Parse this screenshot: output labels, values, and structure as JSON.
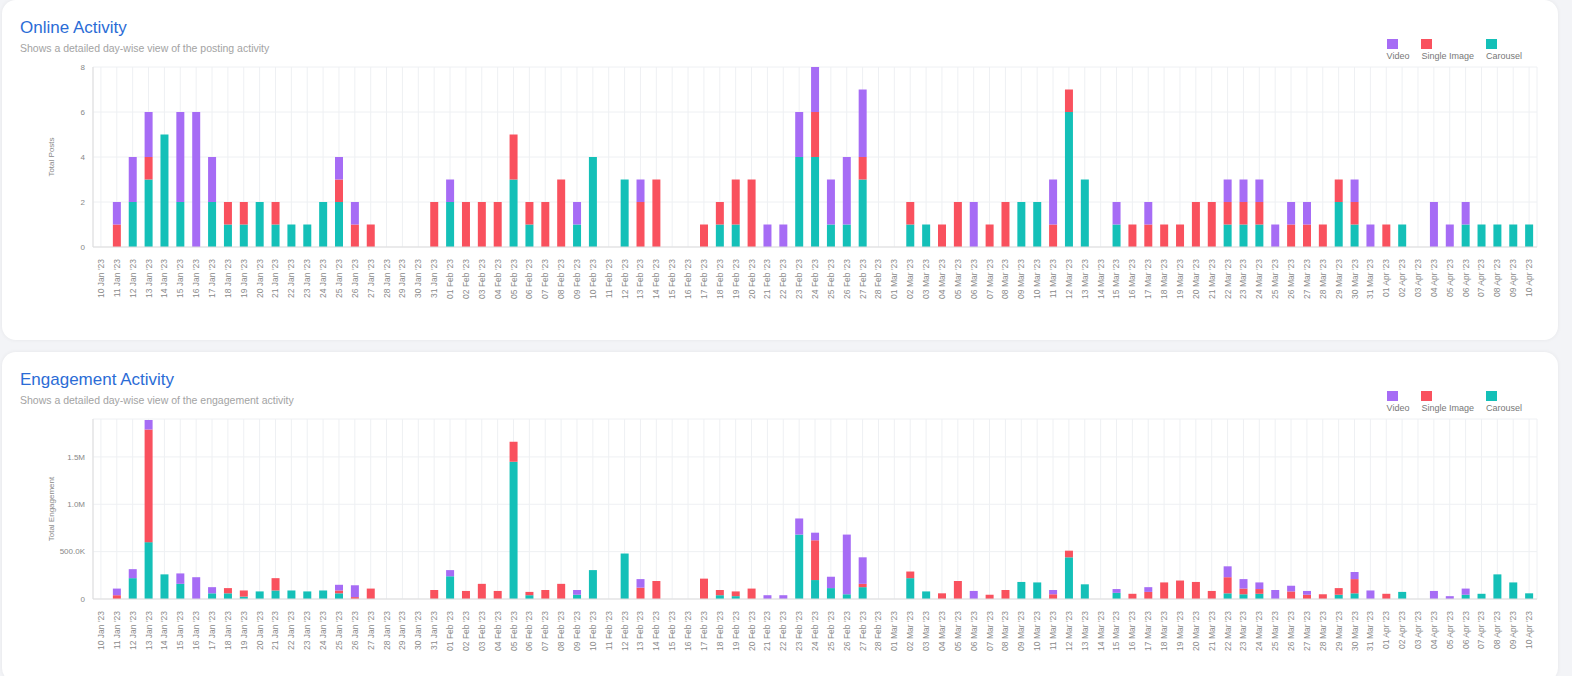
{
  "chart_data": [
    {
      "type": "bar",
      "title": "Online Activity",
      "subtitle": "Shows a detailed day-wise view of the posting activity",
      "y_label": "Total Posts",
      "categories": [
        "10 Jan '23",
        "11 Jan '23",
        "12 Jan '23",
        "13 Jan '23",
        "14 Jan '23",
        "15 Jan '23",
        "16 Jan '23",
        "17 Jan '23",
        "18 Jan '23",
        "19 Jan '23",
        "20 Jan '23",
        "21 Jan '23",
        "22 Jan '23",
        "23 Jan '23",
        "24 Jan '23",
        "25 Jan '23",
        "26 Jan '23",
        "27 Jan '23",
        "28 Jan '23",
        "29 Jan '23",
        "30 Jan '23",
        "31 Jan '23",
        "01 Feb '23",
        "02 Feb '23",
        "03 Feb '23",
        "04 Feb '23",
        "05 Feb '23",
        "06 Feb '23",
        "07 Feb '23",
        "08 Feb '23",
        "09 Feb '23",
        "10 Feb '23",
        "11 Feb '23",
        "12 Feb '23",
        "13 Feb '23",
        "14 Feb '23",
        "15 Feb '23",
        "16 Feb '23",
        "17 Feb '23",
        "18 Feb '23",
        "19 Feb '23",
        "20 Feb '23",
        "21 Feb '23",
        "22 Feb '23",
        "23 Feb '23",
        "24 Feb '23",
        "25 Feb '23",
        "26 Feb '23",
        "27 Feb '23",
        "28 Feb '23",
        "01 Mar '23",
        "02 Mar '23",
        "03 Mar '23",
        "04 Mar '23",
        "05 Mar '23",
        "06 Mar '23",
        "07 Mar '23",
        "08 Mar '23",
        "09 Mar '23",
        "10 Mar '23",
        "11 Mar '23",
        "12 Mar '23",
        "13 Mar '23",
        "14 Mar '23",
        "15 Mar '23",
        "16 Mar '23",
        "17 Mar '23",
        "18 Mar '23",
        "19 Mar '23",
        "20 Mar '23",
        "21 Mar '23",
        "22 Mar '23",
        "23 Mar '23",
        "24 Mar '23",
        "25 Mar '23",
        "26 Mar '23",
        "27 Mar '23",
        "28 Mar '23",
        "29 Mar '23",
        "30 Mar '23",
        "31 Mar '23",
        "01 Apr '23",
        "02 Apr '23",
        "03 Apr '23",
        "04 Apr '23",
        "05 Apr '23",
        "06 Apr '23",
        "07 Apr '23",
        "08 Apr '23",
        "09 Apr '23",
        "10 Apr '23"
      ],
      "series": [
        {
          "name": "Video",
          "color": "#a66cf5",
          "values": [
            0,
            1,
            2,
            2,
            0,
            4,
            6,
            2,
            0,
            0,
            0,
            0,
            0,
            0,
            0,
            1,
            1,
            0,
            0,
            0,
            0,
            0,
            1,
            0,
            0,
            0,
            0,
            0,
            0,
            0,
            1,
            0,
            0,
            0,
            1,
            0,
            0,
            0,
            0,
            0,
            0,
            0,
            1,
            1,
            2,
            2,
            2,
            3,
            3,
            0,
            0,
            0,
            0,
            0,
            0,
            2,
            0,
            0,
            0,
            0,
            2,
            0,
            0,
            0,
            1,
            0,
            1,
            0,
            0,
            0,
            0,
            1,
            1,
            1,
            1,
            1,
            1,
            0,
            0,
            1,
            1,
            0,
            0,
            0,
            2,
            1,
            1,
            0,
            0,
            0,
            0
          ]
        },
        {
          "name": "Single Image",
          "color": "#f9515e",
          "values": [
            0,
            1,
            0,
            1,
            0,
            0,
            0,
            0,
            1,
            1,
            0,
            1,
            0,
            0,
            0,
            1,
            1,
            1,
            0,
            0,
            0,
            2,
            0,
            2,
            2,
            2,
            2,
            1,
            2,
            3,
            0,
            0,
            0,
            0,
            2,
            3,
            0,
            0,
            1,
            1,
            2,
            3,
            0,
            0,
            0,
            2,
            0,
            0,
            1,
            0,
            0,
            1,
            0,
            1,
            2,
            0,
            1,
            2,
            0,
            0,
            1,
            1,
            0,
            0,
            0,
            1,
            1,
            1,
            1,
            2,
            2,
            1,
            1,
            1,
            0,
            1,
            1,
            1,
            1,
            1,
            0,
            1,
            0,
            0,
            0,
            0,
            0,
            0,
            0,
            0,
            0
          ]
        },
        {
          "name": "Carousel",
          "color": "#14c0b8",
          "values": [
            0,
            0,
            2,
            3,
            5,
            2,
            0,
            2,
            1,
            1,
            2,
            1,
            1,
            1,
            2,
            2,
            0,
            0,
            0,
            0,
            0,
            0,
            2,
            0,
            0,
            0,
            3,
            1,
            0,
            0,
            1,
            4,
            0,
            3,
            0,
            0,
            0,
            0,
            0,
            1,
            1,
            0,
            0,
            0,
            4,
            4,
            1,
            1,
            3,
            0,
            0,
            1,
            1,
            0,
            0,
            0,
            0,
            0,
            2,
            2,
            0,
            6,
            3,
            0,
            1,
            0,
            0,
            0,
            0,
            0,
            0,
            1,
            1,
            1,
            0,
            0,
            0,
            0,
            2,
            1,
            0,
            0,
            1,
            0,
            0,
            0,
            1,
            1,
            1,
            1,
            1
          ]
        }
      ],
      "ylim": [
        0,
        8
      ],
      "yticks": [
        0,
        2,
        4,
        6,
        8
      ],
      "stacked": true,
      "grid": true,
      "legend": "upper right"
    },
    {
      "type": "bar",
      "title": "Engagement Activity",
      "subtitle": "Shows a detailed day-wise view of the engagement activity",
      "y_label": "Total Engagement",
      "categories": [
        "10 Jan '23",
        "11 Jan '23",
        "12 Jan '23",
        "13 Jan '23",
        "14 Jan '23",
        "15 Jan '23",
        "16 Jan '23",
        "17 Jan '23",
        "18 Jan '23",
        "19 Jan '23",
        "20 Jan '23",
        "21 Jan '23",
        "22 Jan '23",
        "23 Jan '23",
        "24 Jan '23",
        "25 Jan '23",
        "26 Jan '23",
        "27 Jan '23",
        "28 Jan '23",
        "29 Jan '23",
        "30 Jan '23",
        "31 Jan '23",
        "01 Feb '23",
        "02 Feb '23",
        "03 Feb '23",
        "04 Feb '23",
        "05 Feb '23",
        "06 Feb '23",
        "07 Feb '23",
        "08 Feb '23",
        "09 Feb '23",
        "10 Feb '23",
        "11 Feb '23",
        "12 Feb '23",
        "13 Feb '23",
        "14 Feb '23",
        "15 Feb '23",
        "16 Feb '23",
        "17 Feb '23",
        "18 Feb '23",
        "19 Feb '23",
        "20 Feb '23",
        "21 Feb '23",
        "22 Feb '23",
        "23 Feb '23",
        "24 Feb '23",
        "25 Feb '23",
        "26 Feb '23",
        "27 Feb '23",
        "28 Feb '23",
        "01 Mar '23",
        "02 Mar '23",
        "03 Mar '23",
        "04 Mar '23",
        "05 Mar '23",
        "06 Mar '23",
        "07 Mar '23",
        "08 Mar '23",
        "09 Mar '23",
        "10 Mar '23",
        "11 Mar '23",
        "12 Mar '23",
        "13 Mar '23",
        "14 Mar '23",
        "15 Mar '23",
        "16 Mar '23",
        "17 Mar '23",
        "18 Mar '23",
        "19 Mar '23",
        "20 Mar '23",
        "21 Mar '23",
        "22 Mar '23",
        "23 Mar '23",
        "24 Mar '23",
        "25 Mar '23",
        "26 Mar '23",
        "27 Mar '23",
        "28 Mar '23",
        "29 Mar '23",
        "30 Mar '23",
        "31 Mar '23",
        "01 Apr '23",
        "02 Apr '23",
        "03 Apr '23",
        "04 Apr '23",
        "05 Apr '23",
        "06 Apr '23",
        "07 Apr '23",
        "08 Apr '23",
        "09 Apr '23",
        "10 Apr '23"
      ],
      "series": [
        {
          "name": "Video",
          "color": "#a66cf5",
          "values": [
            0,
            70000,
            95000,
            100000,
            0,
            110000,
            230000,
            65000,
            0,
            0,
            0,
            0,
            0,
            0,
            0,
            60000,
            125000,
            0,
            0,
            0,
            0,
            0,
            65000,
            0,
            0,
            0,
            0,
            0,
            0,
            0,
            50000,
            0,
            0,
            0,
            90000,
            0,
            0,
            0,
            0,
            0,
            0,
            0,
            40000,
            40000,
            170000,
            80000,
            120000,
            630000,
            280000,
            0,
            0,
            0,
            0,
            0,
            0,
            85000,
            0,
            0,
            0,
            0,
            45000,
            0,
            0,
            0,
            40000,
            0,
            50000,
            0,
            0,
            0,
            0,
            115000,
            100000,
            70000,
            95000,
            60000,
            40000,
            0,
            0,
            75000,
            90000,
            0,
            0,
            0,
            85000,
            30000,
            65000,
            0,
            0,
            0,
            0
          ]
        },
        {
          "name": "Single Image",
          "color": "#f9515e",
          "values": [
            0,
            40000,
            0,
            1190000,
            0,
            0,
            0,
            0,
            55000,
            65000,
            0,
            130000,
            0,
            0,
            0,
            30000,
            20000,
            110000,
            0,
            0,
            0,
            95000,
            0,
            85000,
            160000,
            85000,
            210000,
            35000,
            95000,
            160000,
            0,
            0,
            0,
            0,
            120000,
            190000,
            0,
            0,
            215000,
            55000,
            50000,
            110000,
            0,
            0,
            0,
            420000,
            0,
            0,
            35000,
            0,
            0,
            70000,
            0,
            60000,
            190000,
            0,
            45000,
            95000,
            0,
            0,
            50000,
            70000,
            0,
            0,
            0,
            55000,
            75000,
            175000,
            195000,
            180000,
            85000,
            170000,
            60000,
            50000,
            0,
            80000,
            45000,
            50000,
            70000,
            150000,
            0,
            55000,
            0,
            0,
            0,
            0,
            0,
            0,
            0,
            0,
            0
          ]
        },
        {
          "name": "Carousel",
          "color": "#14c0b8",
          "values": [
            0,
            0,
            220000,
            600000,
            260000,
            160000,
            0,
            60000,
            60000,
            25000,
            80000,
            90000,
            90000,
            80000,
            90000,
            60000,
            0,
            0,
            0,
            0,
            0,
            0,
            240000,
            0,
            0,
            0,
            1450000,
            40000,
            0,
            0,
            45000,
            305000,
            0,
            480000,
            0,
            0,
            0,
            0,
            0,
            40000,
            30000,
            0,
            0,
            0,
            680000,
            200000,
            115000,
            50000,
            125000,
            0,
            0,
            220000,
            80000,
            0,
            0,
            0,
            0,
            0,
            180000,
            175000,
            0,
            440000,
            155000,
            0,
            65000,
            0,
            0,
            0,
            0,
            0,
            0,
            60000,
            50000,
            55000,
            0,
            0,
            0,
            0,
            45000,
            60000,
            0,
            0,
            75000,
            0,
            0,
            0,
            45000,
            55000,
            260000,
            175000,
            60000
          ]
        }
      ],
      "ylim": [
        0,
        1900000
      ],
      "yticks": [
        0,
        {
          "value": 500000,
          "label": "500.0K"
        },
        {
          "value": 1000000,
          "label": "1.0M"
        },
        {
          "value": 1500000,
          "label": "1.5M"
        }
      ],
      "stacked": true,
      "grid": true,
      "legend": "upper right"
    }
  ]
}
